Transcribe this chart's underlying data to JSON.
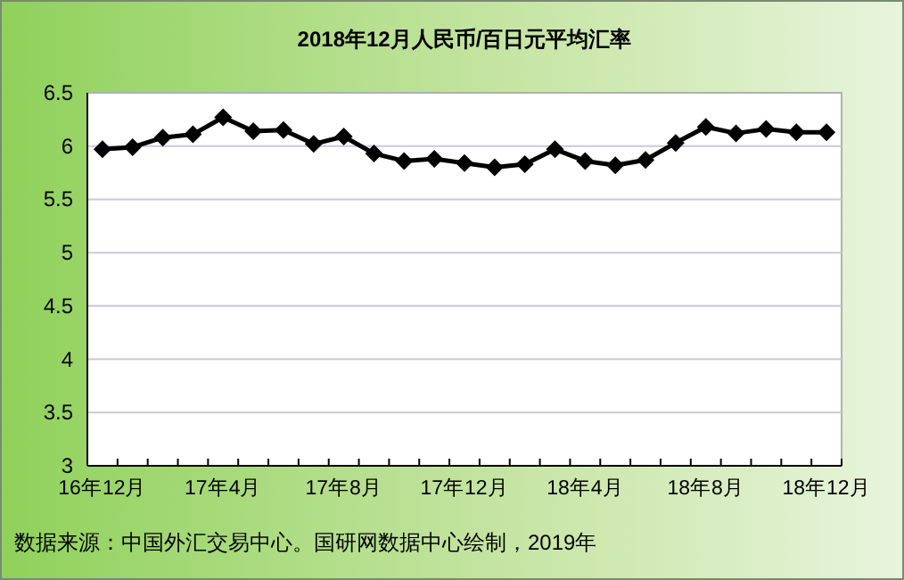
{
  "chart_data": {
    "type": "line",
    "title": "2018年12月人民币/百日元平均汇率",
    "categories": [
      "16年12月",
      null,
      null,
      null,
      "17年4月",
      null,
      null,
      null,
      "17年8月",
      null,
      null,
      null,
      "17年12月",
      null,
      null,
      null,
      "18年4月",
      null,
      null,
      null,
      "18年8月",
      null,
      null,
      null,
      "18年12月"
    ],
    "series": [
      {
        "color": "#000000",
        "values": [
          5.97,
          5.99,
          6.08,
          6.11,
          6.27,
          6.14,
          6.15,
          6.02,
          6.09,
          5.93,
          5.86,
          5.88,
          5.84,
          5.8,
          5.83,
          5.97,
          5.86,
          5.82,
          5.87,
          6.03,
          6.18,
          6.12,
          6.16,
          6.13,
          6.13
        ]
      }
    ],
    "ylim": [
      3,
      6.5
    ],
    "yticks": [
      3,
      3.5,
      4,
      4.5,
      5,
      5.5,
      6,
      6.5
    ],
    "grid": "y",
    "marker": "diamond",
    "line_style": "solid",
    "annotations": [
      "数据来源：中国外汇交易中心。国研网数据中心绘制，2019年"
    ]
  }
}
